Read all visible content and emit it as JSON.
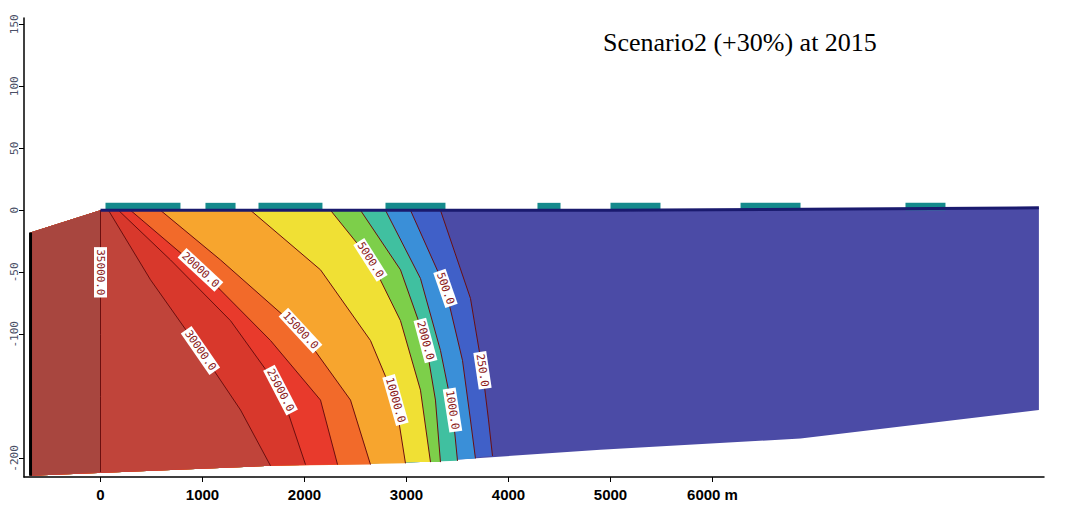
{
  "chart_data": {
    "type": "contour",
    "title": "Scenario2 (+30%) at 2015",
    "xlim": [
      -750,
      9250
    ],
    "ylim": [
      -215,
      155
    ],
    "xticks": [
      0,
      1000,
      2000,
      3000,
      4000,
      5000,
      {
        "value": 6000,
        "label": "6000 m"
      }
    ],
    "yticks": [
      -200,
      -100,
      -50,
      0,
      50,
      100,
      150
    ],
    "grid": false,
    "domain": {
      "color": "#4b4ba6",
      "top": [
        [
          -686,
          -18
        ],
        [
          0,
          0
        ],
        [
          5000,
          0
        ],
        [
          9200,
          2
        ]
      ],
      "bottom": [
        [
          -686,
          -214
        ],
        [
          1667,
          -206
        ],
        [
          3137,
          -203
        ],
        [
          4900,
          -193
        ],
        [
          6863,
          -184
        ],
        [
          9200,
          -161
        ]
      ]
    },
    "surface_water": {
      "color": "#148a8c",
      "bottom": 0,
      "top": 6,
      "segments": [
        [
          49,
          784
        ],
        [
          1029,
          1324
        ],
        [
          1549,
          2176
        ],
        [
          2794,
          3382
        ],
        [
          4284,
          4510
        ],
        [
          5000,
          5490
        ],
        [
          6275,
          6863
        ],
        [
          7892,
          8284
        ]
      ]
    },
    "contours": [
      {
        "value": 35000,
        "label": "35000.0",
        "color": "#a8463f",
        "points": [
          [
            0,
            0
          ],
          [
            0,
            -50
          ],
          [
            0,
            -100
          ],
          [
            0,
            -150
          ],
          [
            0,
            -211
          ]
        ]
      },
      {
        "value": 30000,
        "label": "30000.0",
        "color": "#c0443a",
        "points": [
          [
            78,
            0
          ],
          [
            490,
            -56
          ],
          [
            980,
            -113
          ],
          [
            1373,
            -161
          ],
          [
            1667,
            -206
          ]
        ]
      },
      {
        "value": 25000,
        "label": "25000.0",
        "color": "#d8382c",
        "points": [
          [
            176,
            0
          ],
          [
            686,
            -40
          ],
          [
            1275,
            -89
          ],
          [
            1765,
            -145
          ],
          [
            2010,
            -205
          ]
        ]
      },
      {
        "value": 20000,
        "label": "20000.0",
        "color": "#e83a2c",
        "points": [
          [
            294,
            0
          ],
          [
            980,
            -48
          ],
          [
            1667,
            -105
          ],
          [
            2157,
            -153
          ],
          [
            2324,
            -205
          ]
        ]
      },
      {
        "value": 15000,
        "label": "15000.0",
        "color": "#f26a2a",
        "points": [
          [
            588,
            0
          ],
          [
            1176,
            -40
          ],
          [
            1961,
            -97
          ],
          [
            2451,
            -153
          ],
          [
            2647,
            -205
          ]
        ]
      },
      {
        "value": 10000,
        "label": "10000.0",
        "color": "#f7a52e",
        "points": [
          [
            1471,
            0
          ],
          [
            2157,
            -48
          ],
          [
            2647,
            -105
          ],
          [
            2892,
            -153
          ],
          [
            2990,
            -204
          ]
        ]
      },
      {
        "value": 5000,
        "label": "5000.0",
        "color": "#f0e034",
        "points": [
          [
            2255,
            0
          ],
          [
            2647,
            -40
          ],
          [
            2941,
            -89
          ],
          [
            3137,
            -145
          ],
          [
            3235,
            -203
          ]
        ]
      },
      {
        "value": 2000,
        "label": "2000.0",
        "color": "#7dcf4a",
        "points": [
          [
            2549,
            0
          ],
          [
            2941,
            -48
          ],
          [
            3186,
            -105
          ],
          [
            3284,
            -153
          ],
          [
            3333,
            -203
          ]
        ]
      },
      {
        "value": 1000,
        "label": "1000.0",
        "color": "#40c0a0",
        "points": [
          [
            2794,
            0
          ],
          [
            3137,
            -55
          ],
          [
            3333,
            -113
          ],
          [
            3451,
            -161
          ],
          [
            3500,
            -202
          ]
        ]
      },
      {
        "value": 500,
        "label": "500.0",
        "color": "#3a8fd8",
        "points": [
          [
            3039,
            0
          ],
          [
            3382,
            -63
          ],
          [
            3549,
            -121
          ],
          [
            3627,
            -169
          ],
          [
            3676,
            -200
          ]
        ]
      },
      {
        "value": 250,
        "label": "250.0",
        "color": "#4060c8",
        "points": [
          [
            3333,
            0
          ],
          [
            3627,
            -71
          ],
          [
            3745,
            -129
          ],
          [
            3804,
            -169
          ],
          [
            3843,
            -198
          ]
        ]
      }
    ]
  }
}
